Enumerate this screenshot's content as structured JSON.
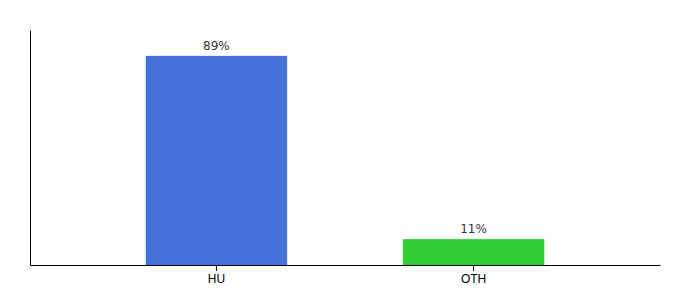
{
  "chart_data": {
    "type": "bar",
    "categories": [
      "HU",
      "OTH"
    ],
    "values": [
      89,
      11
    ],
    "value_labels": [
      "89%",
      "11%"
    ],
    "colors": [
      "#4472d9",
      "#33cc33"
    ],
    "ylim": [
      0,
      100
    ],
    "data_labels": true,
    "tick_labels": "x"
  }
}
